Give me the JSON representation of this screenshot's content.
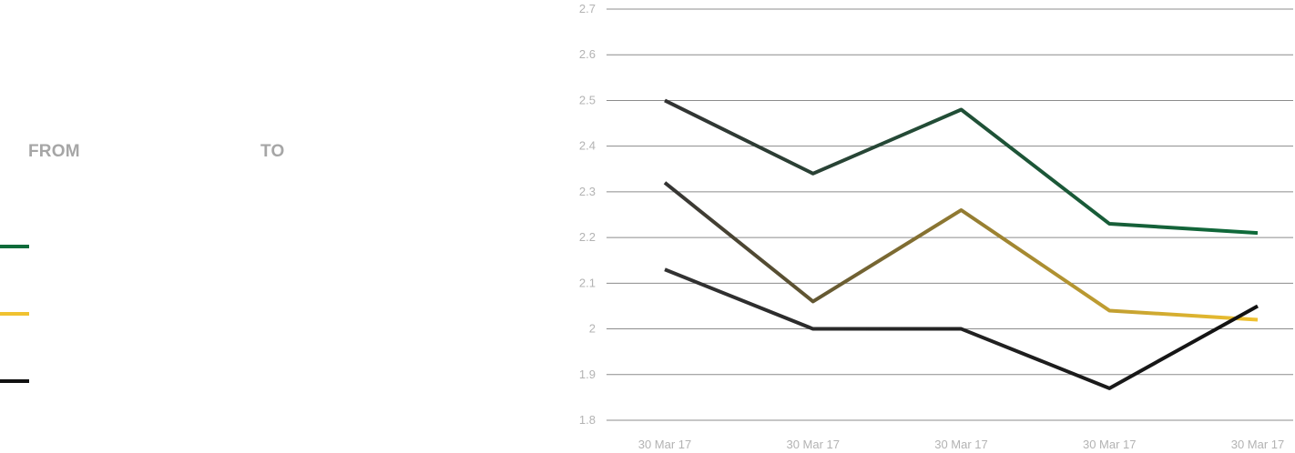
{
  "filters": {
    "from_label": "FROM",
    "to_label": "TO"
  },
  "legend": [
    {
      "color": "#0e6b3a"
    },
    {
      "color": "#f0c230"
    },
    {
      "color": "#111111"
    }
  ],
  "chart_data": {
    "type": "line",
    "categories": [
      "30 Mar 17",
      "30 Mar 17",
      "30 Mar 17",
      "30 Mar 17",
      "30 Mar 17"
    ],
    "ylim": [
      1.8,
      2.7
    ],
    "yticks": [
      "2.7",
      "2.6",
      "2.5",
      "2.4",
      "2.3",
      "2.2",
      "2.1",
      "2",
      "1.9",
      "1.8"
    ],
    "grid": true,
    "series": [
      {
        "color_start": "#333333",
        "color_end": "#0e6b3a",
        "values": [
          2.5,
          2.34,
          2.48,
          2.23,
          2.21
        ]
      },
      {
        "color_start": "#333333",
        "color_end": "#f0c230",
        "values": [
          2.32,
          2.06,
          2.26,
          2.04,
          2.02
        ]
      },
      {
        "color_start": "#333333",
        "color_end": "#111111",
        "values": [
          2.13,
          2.0,
          2.0,
          1.87,
          2.05
        ]
      }
    ]
  }
}
